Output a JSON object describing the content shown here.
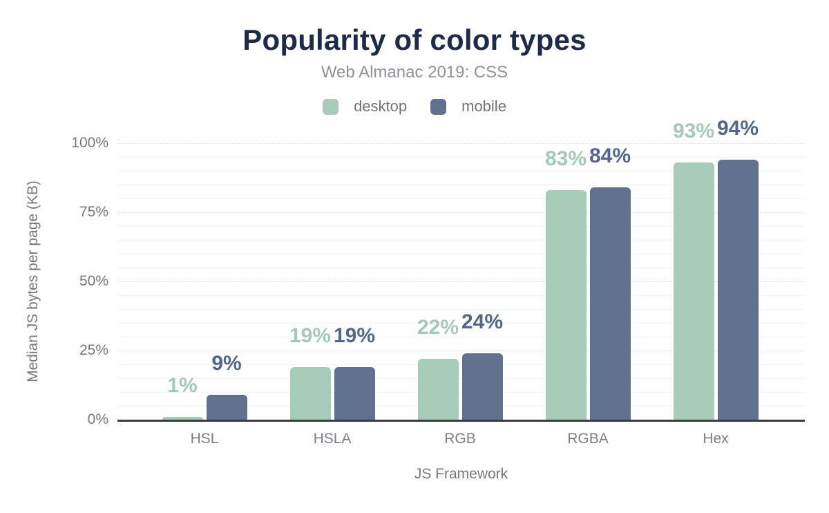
{
  "page": {
    "background": "#ffffff"
  },
  "chart_data": {
    "type": "bar",
    "title": "Popularity of color types",
    "subtitle": "Web Almanac 2019: CSS",
    "title_color": "#1b2b49",
    "subtitle_color": "#8f9297",
    "axis_text_color": "#74787e",
    "categories": [
      "HSL",
      "HSLA",
      "RGB",
      "RGBA",
      "Hex"
    ],
    "series": [
      {
        "name": "desktop",
        "color": "#a8ccba",
        "label_color": "#a4c9b6",
        "values": [
          1,
          19,
          22,
          83,
          93
        ]
      },
      {
        "name": "mobile",
        "color": "#5f718f",
        "label_color": "#52678b",
        "values": [
          9,
          19,
          24,
          84,
          94
        ]
      }
    ],
    "value_suffix": "%",
    "value_labels": [
      [
        "1%",
        "19%",
        "22%",
        "83%",
        "93%"
      ],
      [
        "9%",
        "19%",
        "24%",
        "84%",
        "94%"
      ]
    ],
    "xlabel": "JS Framework",
    "ylabel": "Median JS bytes per page (KB)",
    "ylim": [
      0,
      100
    ],
    "yticks": [
      {
        "value": 0,
        "label": "0%"
      },
      {
        "value": 25,
        "label": "25%"
      },
      {
        "value": 50,
        "label": "50%"
      },
      {
        "value": 75,
        "label": "75%"
      },
      {
        "value": 100,
        "label": "100%"
      }
    ],
    "grid": {
      "orientation": "horizontal",
      "minor_step": 5,
      "major_step": 25,
      "minor_color": "#f3f3f3",
      "major_color": "#d9d9d9"
    },
    "legend_position": "top",
    "axis_line_color": "#3a3a3c"
  }
}
